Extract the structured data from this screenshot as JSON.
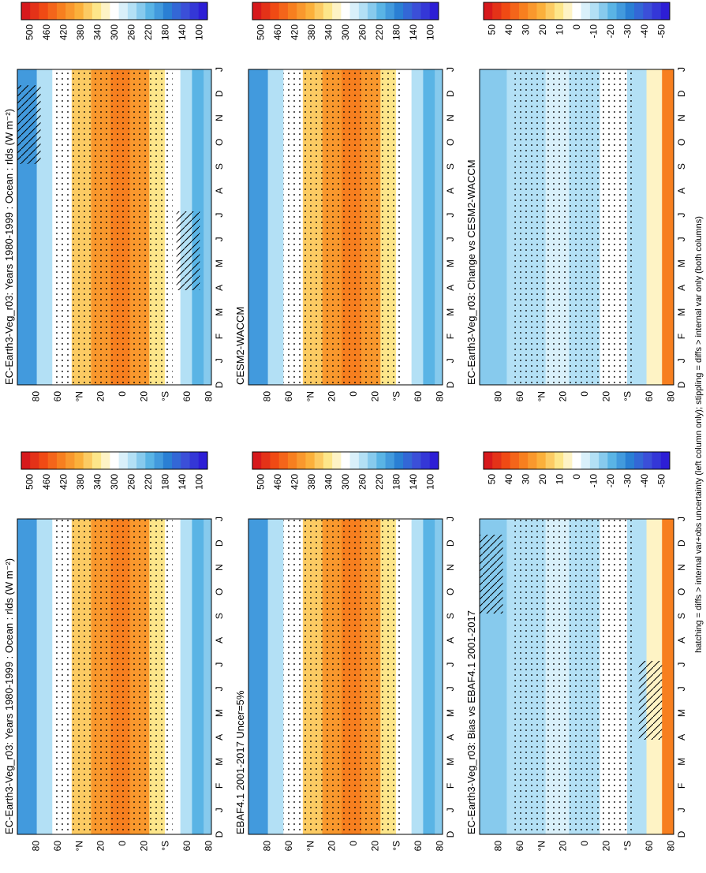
{
  "figure": {
    "footnote": "hatching = diffs > internal var+obs uncertainty (left column only); stippling = diffs > internal var only (both columns)",
    "months": [
      "D",
      "J",
      "F",
      "M",
      "A",
      "M",
      "J",
      "J",
      "A",
      "S",
      "O",
      "N",
      "D",
      "J"
    ],
    "lat_ticks": [
      "80",
      "60",
      "°N",
      "20",
      "0",
      "20",
      "°S",
      "60",
      "80"
    ]
  },
  "chart_data": [
    {
      "id": "p1",
      "type": "heatmap",
      "title": "EC-Earth3-Veg_r03: Years 1980-1999 : Ocean : rlds (W m⁻²)",
      "colorbar_labels": [
        "500",
        "460",
        "420",
        "380",
        "340",
        "300",
        "260",
        "220",
        "180",
        "140",
        "100"
      ],
      "colorbar_colors": [
        "#d7191c",
        "#f04a14",
        "#f77f1f",
        "#fbb03b",
        "#fde68a",
        "#ffffff",
        "#b3e0f5",
        "#5ab4e5",
        "#2a7fd4",
        "#3b4fd8",
        "#2d1ed6"
      ],
      "x": [
        "D",
        "J",
        "F",
        "M",
        "A",
        "M",
        "J",
        "J",
        "A",
        "S",
        "O",
        "N",
        "D",
        "J"
      ],
      "y": [
        "80",
        "60",
        "°N",
        "20",
        "0",
        "20",
        "°S",
        "60",
        "80"
      ],
      "hatching": true
    },
    {
      "id": "p2",
      "type": "heatmap",
      "title": "EC-Earth3-Veg_r03: Years 1980-1999 : Ocean : rlds (W m⁻²)",
      "colorbar_labels": [
        "500",
        "460",
        "420",
        "380",
        "340",
        "300",
        "260",
        "220",
        "180",
        "140",
        "100"
      ],
      "colorbar_colors": [
        "#d7191c",
        "#f04a14",
        "#f77f1f",
        "#fbb03b",
        "#fde68a",
        "#ffffff",
        "#b3e0f5",
        "#5ab4e5",
        "#2a7fd4",
        "#3b4fd8",
        "#2d1ed6"
      ],
      "x": [
        "D",
        "J",
        "F",
        "M",
        "A",
        "M",
        "J",
        "J",
        "A",
        "S",
        "O",
        "N",
        "D",
        "J"
      ],
      "y": [
        "80",
        "60",
        "°N",
        "20",
        "0",
        "20",
        "°S",
        "60",
        "80"
      ],
      "hatching": false
    },
    {
      "id": "p3",
      "type": "heatmap",
      "title": "EBAF4.1 2001-2017 Uncer=5%",
      "colorbar_labels": [
        "500",
        "460",
        "420",
        "380",
        "340",
        "300",
        "260",
        "220",
        "180",
        "140",
        "100"
      ],
      "colorbar_colors": [
        "#d7191c",
        "#f04a14",
        "#f77f1f",
        "#fbb03b",
        "#fde68a",
        "#ffffff",
        "#b3e0f5",
        "#5ab4e5",
        "#2a7fd4",
        "#3b4fd8",
        "#2d1ed6"
      ],
      "x": [
        "D",
        "J",
        "F",
        "M",
        "A",
        "M",
        "J",
        "J",
        "A",
        "S",
        "O",
        "N",
        "D",
        "J"
      ],
      "y": [
        "80",
        "60",
        "°N",
        "20",
        "0",
        "20",
        "°S",
        "60",
        "80"
      ],
      "hatching": false
    },
    {
      "id": "p4",
      "type": "heatmap",
      "title": "CESM2-WACCM",
      "colorbar_labels": [
        "500",
        "460",
        "420",
        "380",
        "340",
        "300",
        "260",
        "220",
        "180",
        "140",
        "100"
      ],
      "colorbar_colors": [
        "#d7191c",
        "#f04a14",
        "#f77f1f",
        "#fbb03b",
        "#fde68a",
        "#ffffff",
        "#b3e0f5",
        "#5ab4e5",
        "#2a7fd4",
        "#3b4fd8",
        "#2d1ed6"
      ],
      "x": [
        "D",
        "J",
        "F",
        "M",
        "A",
        "M",
        "J",
        "J",
        "A",
        "S",
        "O",
        "N",
        "D",
        "J"
      ],
      "y": [
        "80",
        "60",
        "°N",
        "20",
        "0",
        "20",
        "°S",
        "60",
        "80"
      ],
      "hatching": false
    },
    {
      "id": "p5",
      "type": "heatmap",
      "title": "EC-Earth3-Veg_r03: Bias vs EBAF4.1 2001-2017",
      "colorbar_labels": [
        "50",
        "40",
        "30",
        "20",
        "10",
        "0",
        "-10",
        "-20",
        "-30",
        "-40",
        "-50"
      ],
      "colorbar_colors": [
        "#d7191c",
        "#f04a14",
        "#f77f1f",
        "#fbb03b",
        "#fde68a",
        "#ffffff",
        "#b3e0f5",
        "#5ab4e5",
        "#2a7fd4",
        "#3b4fd8",
        "#2d1ed6"
      ],
      "x": [
        "D",
        "J",
        "F",
        "M",
        "A",
        "M",
        "J",
        "J",
        "A",
        "S",
        "O",
        "N",
        "D",
        "J"
      ],
      "y": [
        "80",
        "60",
        "°N",
        "20",
        "0",
        "20",
        "°S",
        "60",
        "80"
      ],
      "hatching": true
    },
    {
      "id": "p6",
      "type": "heatmap",
      "title": "EC-Earth3-Veg_r03: Change vs CESM2-WACCM",
      "colorbar_labels": [
        "50",
        "40",
        "30",
        "20",
        "10",
        "0",
        "-10",
        "-20",
        "-30",
        "-40",
        "-50"
      ],
      "colorbar_colors": [
        "#d7191c",
        "#f04a14",
        "#f77f1f",
        "#fbb03b",
        "#fde68a",
        "#ffffff",
        "#b3e0f5",
        "#5ab4e5",
        "#2a7fd4",
        "#3b4fd8",
        "#2d1ed6"
      ],
      "x": [
        "D",
        "J",
        "F",
        "M",
        "A",
        "M",
        "J",
        "J",
        "A",
        "S",
        "O",
        "N",
        "D",
        "J"
      ],
      "y": [
        "80",
        "60",
        "°N",
        "20",
        "0",
        "20",
        "°S",
        "60",
        "80"
      ],
      "hatching": false
    }
  ]
}
